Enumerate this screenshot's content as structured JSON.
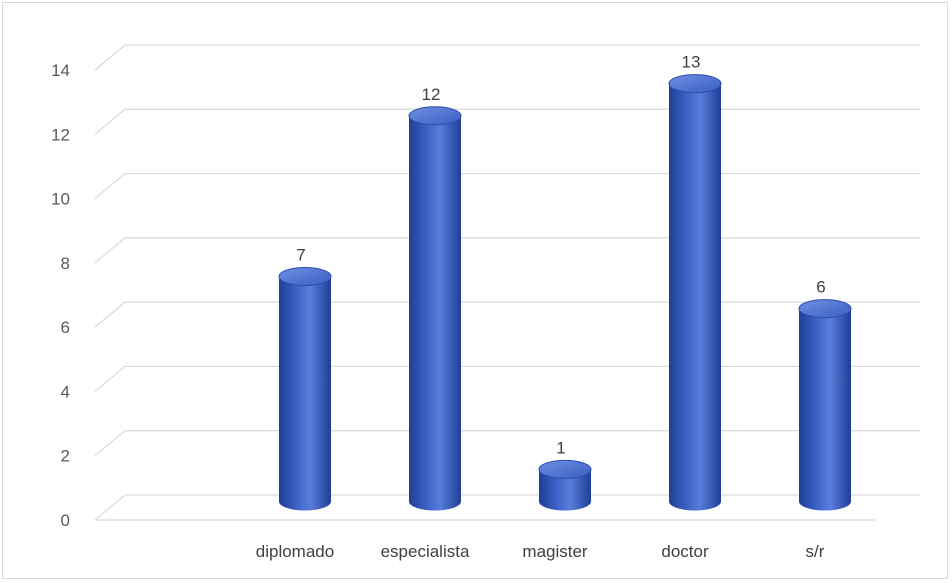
{
  "chart_data": {
    "type": "bar",
    "style": "3d-cylinder",
    "categories": [
      "",
      "diplomado",
      "especialista",
      "magister",
      "doctor",
      "s/r"
    ],
    "values": [
      null,
      7,
      12,
      1,
      13,
      6
    ],
    "data_labels": [
      "",
      "7",
      "12",
      "1",
      "13",
      "6"
    ],
    "y_ticks": [
      "0",
      "2",
      "4",
      "6",
      "8",
      "10",
      "12",
      "14"
    ],
    "ylim": [
      0,
      14
    ],
    "title": "",
    "xlabel": "",
    "ylabel": "",
    "grid": true,
    "legend": "none",
    "colors": {
      "bar": "#3d63c8",
      "bar_dark": "#1f3f96",
      "bar_light": "#6f8fe0",
      "grid": "#d9d9d9"
    }
  }
}
